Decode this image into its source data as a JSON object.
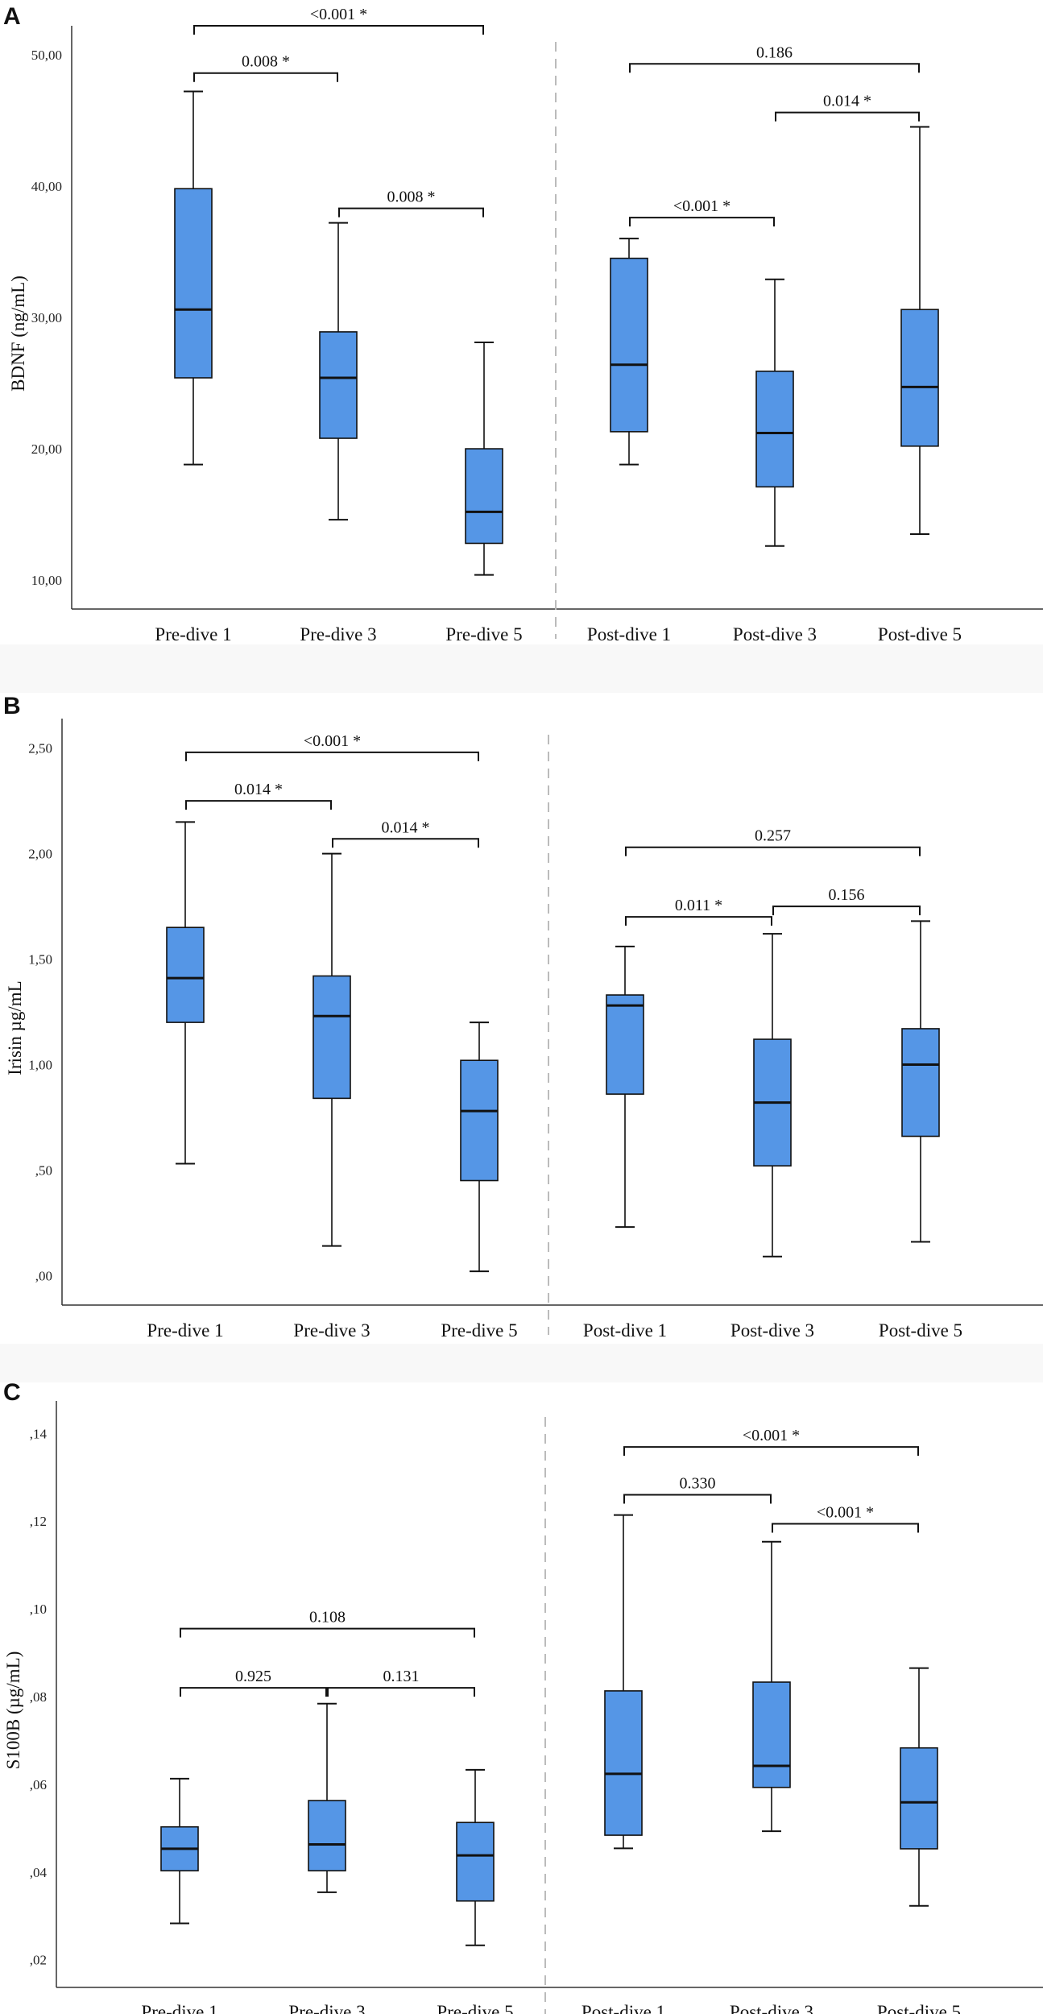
{
  "colors": {
    "box_fill": "#5596e6",
    "stroke": "#111111",
    "divider": "#bbbbbb",
    "band": "#f8f8f8"
  },
  "chart_data": [
    {
      "panel": "A",
      "type": "box",
      "ylabel": "BDNF (ng/mL)",
      "ylim": [
        7.8,
        52.2
      ],
      "yticks": [
        {
          "v": 10,
          "label": "10,00"
        },
        {
          "v": 20,
          "label": "20,00"
        },
        {
          "v": 30,
          "label": "30,00"
        },
        {
          "v": 40,
          "label": "40,00"
        },
        {
          "v": 50,
          "label": "50,00"
        }
      ],
      "categories": [
        "Pre-dive 1",
        "Pre-dive 3",
        "Pre-dive 5",
        "Post-dive 1",
        "Post-dive 3",
        "Post-dive 5"
      ],
      "boxes": [
        {
          "max": 47.2,
          "q3": 39.8,
          "median": 30.6,
          "q1": 25.4,
          "min": 18.8
        },
        {
          "max": 37.2,
          "q3": 28.9,
          "median": 25.4,
          "q1": 20.8,
          "min": 14.6
        },
        {
          "max": 28.1,
          "q3": 20.0,
          "median": 15.2,
          "q1": 12.8,
          "min": 10.4
        },
        {
          "max": 36.0,
          "q3": 34.5,
          "median": 26.4,
          "q1": 21.3,
          "min": 18.8
        },
        {
          "max": 32.9,
          "q3": 25.9,
          "median": 21.2,
          "q1": 17.1,
          "min": 12.6
        },
        {
          "max": 44.5,
          "q3": 30.6,
          "median": 24.7,
          "q1": 20.2,
          "min": 13.5
        }
      ],
      "comparisons": [
        {
          "from": 0,
          "to": 2,
          "label": "<0.001 *",
          "y": 52.2
        },
        {
          "from": 0,
          "to": 1,
          "label": "0.008 *",
          "y": 48.6
        },
        {
          "from": 1,
          "to": 2,
          "label": "0.008 *",
          "y": 38.3
        },
        {
          "from": 3,
          "to": 5,
          "label": "0.186",
          "y": 49.3
        },
        {
          "from": 4,
          "to": 5,
          "label": "0.014 *",
          "y": 45.6
        },
        {
          "from": 3,
          "to": 4,
          "label": "<0.001 *",
          "y": 37.6
        }
      ]
    },
    {
      "panel": "B",
      "type": "box",
      "ylabel": "Irisin µg/mL",
      "ylim": [
        -0.14,
        2.64
      ],
      "yticks": [
        {
          "v": 0,
          "label": ",00"
        },
        {
          "v": 0.5,
          "label": ",50"
        },
        {
          "v": 1,
          "label": "1,00"
        },
        {
          "v": 1.5,
          "label": "1,50"
        },
        {
          "v": 2,
          "label": "2,00"
        },
        {
          "v": 2.5,
          "label": "2,50"
        }
      ],
      "categories": [
        "Pre-dive 1",
        "Pre-dive 3",
        "Pre-dive 5",
        "Post-dive 1",
        "Post-dive 3",
        "Post-dive 5"
      ],
      "boxes": [
        {
          "max": 2.15,
          "q3": 1.65,
          "median": 1.41,
          "q1": 1.2,
          "min": 0.53
        },
        {
          "max": 2.0,
          "q3": 1.42,
          "median": 1.23,
          "q1": 0.84,
          "min": 0.14
        },
        {
          "max": 1.2,
          "q3": 1.02,
          "median": 0.78,
          "q1": 0.45,
          "min": 0.02
        },
        {
          "max": 1.56,
          "q3": 1.33,
          "median": 1.28,
          "q1": 0.86,
          "min": 0.23
        },
        {
          "max": 1.62,
          "q3": 1.12,
          "median": 0.82,
          "q1": 0.52,
          "min": 0.09
        },
        {
          "max": 1.68,
          "q3": 1.17,
          "median": 1.0,
          "q1": 0.66,
          "min": 0.16
        }
      ],
      "comparisons": [
        {
          "from": 0,
          "to": 2,
          "label": "<0.001 *",
          "y": 2.48
        },
        {
          "from": 0,
          "to": 1,
          "label": "0.014 *",
          "y": 2.25
        },
        {
          "from": 1,
          "to": 2,
          "label": "0.014 *",
          "y": 2.07
        },
        {
          "from": 3,
          "to": 5,
          "label": "0.257",
          "y": 2.03
        },
        {
          "from": 3,
          "to": 4,
          "label": "0.011 *",
          "y": 1.7
        },
        {
          "from": 4,
          "to": 5,
          "label": "0.156",
          "y": 1.75
        }
      ]
    },
    {
      "panel": "C",
      "type": "box",
      "ylabel": "S100B (µg/mL)",
      "ylim": [
        0.0137,
        0.1474
      ],
      "yticks": [
        {
          "v": 0.02,
          "label": ",02"
        },
        {
          "v": 0.04,
          "label": ",04"
        },
        {
          "v": 0.06,
          "label": ",06"
        },
        {
          "v": 0.08,
          "label": ",08"
        },
        {
          "v": 0.1,
          "label": ",10"
        },
        {
          "v": 0.12,
          "label": ",12"
        },
        {
          "v": 0.14,
          "label": ",14"
        }
      ],
      "categories": [
        "Pre-dive 1",
        "Pre-dive 3",
        "Pre-dive 5",
        "Post-dive 1",
        "Post-dive 3",
        "Post-dive 5"
      ],
      "boxes": [
        {
          "max": 0.0613,
          "q3": 0.0503,
          "median": 0.0453,
          "q1": 0.0403,
          "min": 0.0283
        },
        {
          "max": 0.0784,
          "q3": 0.0563,
          "median": 0.0463,
          "q1": 0.0403,
          "min": 0.0354
        },
        {
          "max": 0.0633,
          "q3": 0.0513,
          "median": 0.0438,
          "q1": 0.0334,
          "min": 0.0233
        },
        {
          "max": 0.1214,
          "q3": 0.0813,
          "median": 0.0624,
          "q1": 0.0484,
          "min": 0.0454
        },
        {
          "max": 0.1153,
          "q3": 0.0833,
          "median": 0.0642,
          "q1": 0.0593,
          "min": 0.0493
        },
        {
          "max": 0.0865,
          "q3": 0.0683,
          "median": 0.0559,
          "q1": 0.0453,
          "min": 0.0323
        }
      ],
      "comparisons": [
        {
          "from": 0,
          "to": 2,
          "label": "0.108",
          "y": 0.0955
        },
        {
          "from": 0,
          "to": 1,
          "label": "0.925",
          "y": 0.082
        },
        {
          "from": 1,
          "to": 2,
          "label": "0.131",
          "y": 0.082
        },
        {
          "from": 3,
          "to": 5,
          "label": "<0.001 *",
          "y": 0.1369
        },
        {
          "from": 3,
          "to": 4,
          "label": "0.330",
          "y": 0.126
        },
        {
          "from": 4,
          "to": 5,
          "label": "<0.001 *",
          "y": 0.1194
        }
      ]
    }
  ]
}
